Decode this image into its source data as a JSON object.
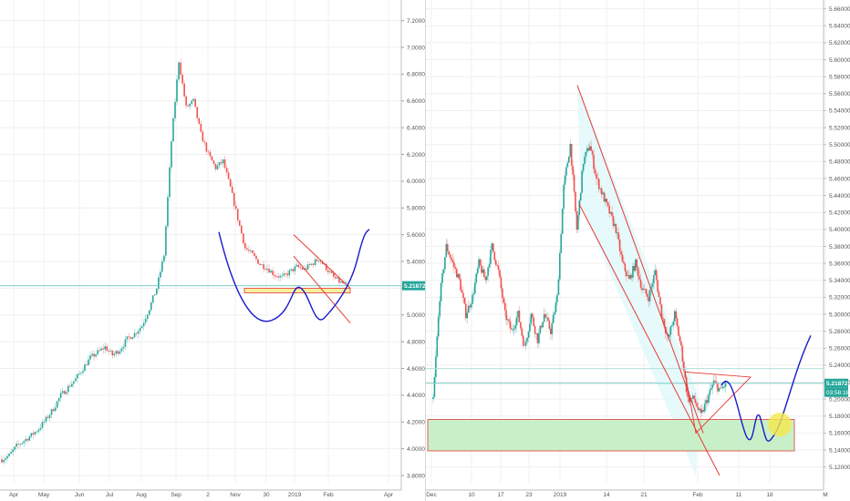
{
  "chart_data": [
    {
      "type": "candlestick",
      "ylim": [
        3.8,
        7.3
      ],
      "y_ticks": [
        "7.20000",
        "7.00000",
        "6.80000",
        "6.60000",
        "6.40000",
        "6.20000",
        "6.00000",
        "5.80000",
        "5.60000",
        "5.40000",
        "5.20000",
        "5.00000",
        "4.80000",
        "4.60000",
        "4.40000",
        "4.20000",
        "4.00000",
        "3.80000"
      ],
      "x_ticks": [
        "Apr",
        "May",
        "Jun",
        "Jul",
        "Aug",
        "Sep",
        "2",
        "Nov",
        "30",
        "2019",
        "Feb",
        "Apr"
      ],
      "current_price": "5.21872",
      "grid": true,
      "colors": {
        "up": "#26a69a",
        "down": "#ef5350",
        "trendline": "#e53935",
        "projection": "#1a1acc",
        "support_fill": "#f3f0a0",
        "current_line": "#80cbc4"
      },
      "series": [
        {
          "values": [
            3.92,
            3.95,
            4.02,
            4.06,
            4.1,
            4.15,
            4.22,
            4.3,
            4.4,
            4.46,
            4.52,
            4.6,
            4.68,
            4.72,
            4.76,
            4.7,
            4.74,
            4.82,
            4.86,
            4.92,
            5.05,
            5.2,
            5.45,
            6.3,
            6.9,
            6.55,
            6.6,
            6.35,
            6.2,
            6.1,
            6.15,
            5.95,
            5.72,
            5.5,
            5.45,
            5.38,
            5.35,
            5.3,
            5.28,
            5.32,
            5.36,
            5.34,
            5.38,
            5.42,
            5.35,
            5.28,
            5.24,
            5.22
          ]
        }
      ]
    },
    {
      "type": "candlestick",
      "ylim": [
        5.11,
        5.665
      ],
      "y_ticks": [
        "5.66000",
        "5.64000",
        "5.62000",
        "5.60000",
        "5.58000",
        "5.56000",
        "5.54000",
        "5.52000",
        "5.50000",
        "5.48000",
        "5.46000",
        "5.44000",
        "5.42000",
        "5.40000",
        "5.38000",
        "5.36000",
        "5.34000",
        "5.32000",
        "5.30000",
        "5.28000",
        "5.26000",
        "5.24000",
        "5.22000",
        "5.20000",
        "5.18000",
        "5.16000",
        "5.14000",
        "5.12000"
      ],
      "x_ticks": [
        "Dec",
        "10",
        "17",
        "23",
        "2019",
        "14",
        "21",
        "Feb",
        "11",
        "18",
        "M"
      ],
      "current_price": "5.21872",
      "countdown": "03:58:18",
      "grid": true,
      "colors": {
        "up": "#26a69a",
        "down": "#ef5350",
        "trendline": "#e53935",
        "projection": "#1a1acc",
        "support_fill": "#c8f0c8",
        "channel_fill": "#e0f7fa",
        "target_circle": "#f5e94c",
        "current_line": "#80cbc4"
      },
      "series": [
        {
          "values": [
            5.2,
            5.32,
            5.38,
            5.36,
            5.34,
            5.3,
            5.32,
            5.36,
            5.34,
            5.38,
            5.35,
            5.3,
            5.28,
            5.3,
            5.26,
            5.3,
            5.27,
            5.3,
            5.28,
            5.32,
            5.45,
            5.5,
            5.4,
            5.48,
            5.5,
            5.46,
            5.44,
            5.42,
            5.4,
            5.36,
            5.34,
            5.36,
            5.33,
            5.32,
            5.35,
            5.3,
            5.27,
            5.3,
            5.26,
            5.2,
            5.2,
            5.18,
            5.2,
            5.22,
            5.21,
            5.22
          ]
        }
      ]
    }
  ]
}
